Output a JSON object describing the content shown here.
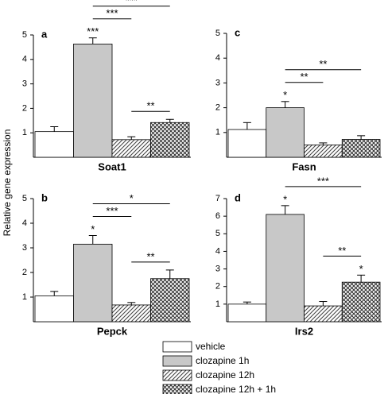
{
  "ylabel": "Relative gene expression",
  "legend": [
    {
      "name": "vehicle",
      "color": "#ffffff",
      "pattern": "solid"
    },
    {
      "name": "clozapine 1h",
      "color": "#c8c8c8",
      "pattern": "solid"
    },
    {
      "name": "clozapine 12h",
      "color": "#444444",
      "pattern": "hatch"
    },
    {
      "name": "clozapine 12h + 1h",
      "color": "#333333",
      "pattern": "crosshatch"
    }
  ],
  "chart_data": [
    {
      "type": "bar",
      "panel": "a",
      "xlabel": "Soat1",
      "values": [
        1.05,
        4.63,
        0.72,
        1.42
      ],
      "errors": [
        0.2,
        0.25,
        0.12,
        0.13
      ],
      "markers": [
        null,
        "***",
        null,
        null
      ],
      "brackets": [
        {
          "text": "**",
          "between": [
            "clozapine 12h",
            "clozapine 12h + 1h"
          ]
        },
        {
          "text": "***",
          "between": [
            "clozapine 1h",
            "clozapine 12h"
          ]
        },
        {
          "text": "***",
          "between": [
            "clozapine 1h",
            "clozapine 12h + 1h"
          ]
        }
      ],
      "ylim": [
        0,
        5
      ],
      "yticks": [
        1,
        2,
        3,
        4,
        5
      ]
    },
    {
      "type": "bar",
      "panel": "b",
      "xlabel": "Pepck",
      "values": [
        1.05,
        3.15,
        0.68,
        1.75
      ],
      "errors": [
        0.18,
        0.35,
        0.1,
        0.35
      ],
      "markers": [
        null,
        "*",
        null,
        null
      ],
      "brackets": [
        {
          "text": "**",
          "between": [
            "clozapine 12h",
            "clozapine 12h + 1h"
          ]
        },
        {
          "text": "***",
          "between": [
            "clozapine 1h",
            "clozapine 12h"
          ]
        },
        {
          "text": "*",
          "between": [
            "clozapine 1h",
            "clozapine 12h + 1h"
          ]
        }
      ],
      "ylim": [
        0,
        5
      ],
      "yticks": [
        1,
        2,
        3,
        4,
        5
      ]
    },
    {
      "type": "bar",
      "panel": "c",
      "xlabel": "Fasn",
      "values": [
        1.12,
        2.0,
        0.5,
        0.72
      ],
      "errors": [
        0.28,
        0.25,
        0.08,
        0.15
      ],
      "markers": [
        null,
        "*",
        null,
        null
      ],
      "brackets": [
        {
          "text": "**",
          "between": [
            "clozapine 1h",
            "clozapine 12h"
          ]
        },
        {
          "text": "**",
          "between": [
            "clozapine 1h",
            "clozapine 12h + 1h"
          ]
        }
      ],
      "ylim": [
        0,
        5
      ],
      "yticks": [
        1,
        2,
        3,
        4,
        5
      ]
    },
    {
      "type": "bar",
      "panel": "d",
      "xlabel": "Irs2",
      "values": [
        1.0,
        6.1,
        0.9,
        2.25
      ],
      "errors": [
        0.12,
        0.5,
        0.25,
        0.4
      ],
      "markers": [
        null,
        "*",
        null,
        "*"
      ],
      "brackets": [
        {
          "text": "**",
          "between": [
            "clozapine 12h",
            "clozapine 12h + 1h"
          ]
        },
        {
          "text": "***",
          "between": [
            "clozapine 1h",
            "clozapine 12h + 1h"
          ]
        }
      ],
      "ylim": [
        0,
        7
      ],
      "yticks": [
        1,
        2,
        3,
        4,
        5,
        6,
        7
      ]
    }
  ]
}
